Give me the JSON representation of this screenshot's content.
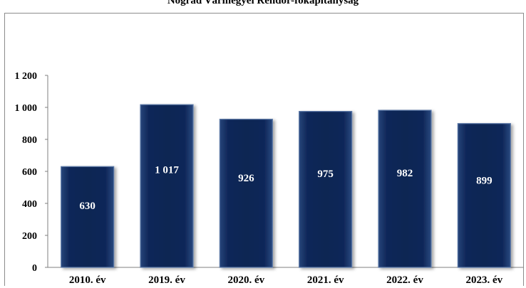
{
  "chart_data": {
    "type": "bar",
    "title": "Nógrád Vármegyei Rendőr-főkapitányság",
    "categories": [
      "2010. év",
      "2019. év",
      "2020. év",
      "2021. év",
      "2022. év",
      "2023. év"
    ],
    "values": [
      630,
      1017,
      926,
      975,
      982,
      899
    ],
    "data_labels": [
      "630",
      "1 017",
      "926",
      "975",
      "982",
      "899"
    ],
    "y_ticks": [
      0,
      200,
      400,
      600,
      800,
      1000,
      1200
    ],
    "y_tick_labels": [
      "0",
      "200",
      "400",
      "600",
      "800",
      "1 000",
      "1 200"
    ],
    "ylim": [
      0,
      1200
    ],
    "xlabel": "",
    "ylabel": "",
    "grid": false,
    "bar_color": "#0f2a55",
    "bar_edge_color": "#5d7aa8"
  }
}
